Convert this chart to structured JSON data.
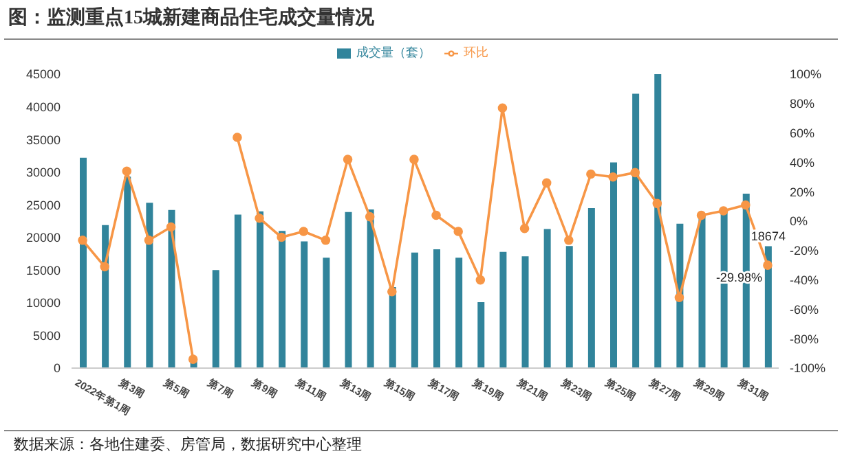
{
  "chart_data": {
    "type": "bar",
    "title": "图：监测重点15城新建商品住宅成交量情况",
    "categories": [
      "2022年第1周",
      null,
      "第3周",
      null,
      "第5周",
      null,
      "第7周",
      null,
      "第9周",
      null,
      "第11周",
      null,
      "第13周",
      null,
      "第15周",
      null,
      "第17周",
      null,
      "第19周",
      null,
      "第21周",
      null,
      "第23周",
      null,
      "第25周",
      null,
      "第27周",
      null,
      "第29周",
      null,
      "第31周",
      null
    ],
    "series": [
      {
        "name": "成交量（套）",
        "color": "#31849b",
        "values": [
          32200,
          21900,
          29300,
          25300,
          24200,
          1200,
          15000,
          23500,
          24000,
          21000,
          19400,
          16900,
          23900,
          24300,
          12400,
          17700,
          18200,
          16900,
          10100,
          17800,
          17100,
          21300,
          18700,
          24500,
          31500,
          42000,
          45000,
          22100,
          23300,
          24000,
          26700,
          18674
        ],
        "value_labels": [
          null,
          null,
          null,
          null,
          null,
          null,
          null,
          null,
          null,
          null,
          null,
          null,
          null,
          null,
          null,
          null,
          null,
          null,
          null,
          null,
          null,
          null,
          null,
          null,
          null,
          null,
          null,
          null,
          null,
          null,
          null,
          "18674"
        ]
      },
      {
        "name": "环比",
        "type": "line",
        "axis": "y2",
        "color": "#f79646",
        "marker": "circle",
        "values": [
          -13,
          -31,
          34,
          -13,
          -4,
          -94,
          null,
          57,
          2,
          -11,
          -7,
          -13,
          42,
          3,
          -48,
          42,
          4,
          -7,
          -40,
          77,
          -5,
          26,
          -13,
          32,
          30,
          33,
          12,
          -52,
          4,
          7,
          11,
          -29.98
        ],
        "value_labels": [
          null,
          null,
          null,
          null,
          null,
          null,
          null,
          null,
          null,
          null,
          null,
          null,
          null,
          null,
          null,
          null,
          null,
          null,
          null,
          null,
          null,
          null,
          null,
          null,
          null,
          null,
          null,
          null,
          null,
          null,
          null,
          "-29.98%"
        ]
      }
    ],
    "ylim": [
      0,
      45000
    ],
    "yticks": [
      0,
      5000,
      10000,
      15000,
      20000,
      25000,
      30000,
      35000,
      40000,
      45000
    ],
    "y2lim": [
      -100,
      100
    ],
    "y2ticks": [
      {
        "value": -100,
        "label": "-100%"
      },
      {
        "value": -80,
        "label": "-80%"
      },
      {
        "value": -60,
        "label": "-60%"
      },
      {
        "value": -40,
        "label": "-40%"
      },
      {
        "value": -20,
        "label": "-20%"
      },
      {
        "value": 0,
        "label": "0%"
      },
      {
        "value": 20,
        "label": "20%"
      },
      {
        "value": 40,
        "label": "40%"
      },
      {
        "value": 60,
        "label": "60%"
      },
      {
        "value": 80,
        "label": "80%"
      },
      {
        "value": 100,
        "label": "100%"
      }
    ],
    "grid": false,
    "legend": "top",
    "annotations": [
      "数据来源：各地住建委、房管局，数据研究中心整理"
    ]
  }
}
